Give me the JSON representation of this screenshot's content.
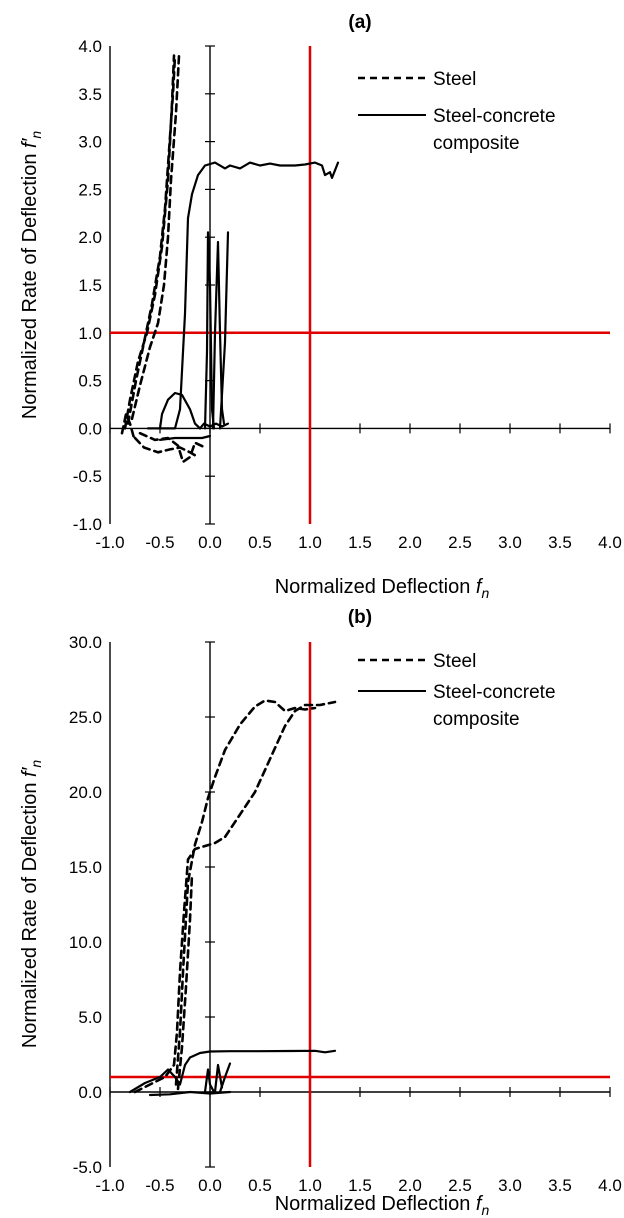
{
  "chart_data": [
    {
      "panel": "(a)",
      "title": "(a)",
      "type": "line",
      "xlabel": "Normalized Deflection",
      "xlabel_italic": "f",
      "xlabel_sub": "n",
      "ylabel": "Normalized Rate of Deflection",
      "ylabel_italic": "f′",
      "ylabel_sub": "n",
      "xlim": [
        -1.0,
        4.0
      ],
      "ylim": [
        -1.0,
        4.0
      ],
      "xticks": [
        "-1.0",
        "-0.5",
        "0.0",
        "0.5",
        "1.0",
        "1.5",
        "2.0",
        "2.5",
        "3.0",
        "3.5",
        "4.0"
      ],
      "yticks": [
        "4.0",
        "3.5",
        "3.0",
        "2.5",
        "2.0",
        "1.5",
        "1.0",
        "0.5",
        "0.0",
        "-0.5",
        "-1.0"
      ],
      "grid": false,
      "legend_position": "top-right",
      "reference_lines": {
        "x": 1.0,
        "y": 1.0,
        "color": "#e00000"
      },
      "series": [
        {
          "name": "Steel",
          "style": "dashed",
          "segments": [
            [
              [
                -0.85,
                0.0
              ],
              [
                -0.8,
                0.3
              ],
              [
                -0.72,
                0.7
              ],
              [
                -0.63,
                1.0
              ],
              [
                -0.55,
                1.4
              ],
              [
                -0.48,
                1.9
              ],
              [
                -0.42,
                2.6
              ],
              [
                -0.38,
                3.4
              ],
              [
                -0.36,
                3.9
              ]
            ],
            [
              [
                -0.82,
                0.05
              ],
              [
                -0.74,
                0.5
              ],
              [
                -0.66,
                0.9
              ],
              [
                -0.58,
                1.3
              ],
              [
                -0.5,
                1.8
              ],
              [
                -0.45,
                2.3
              ],
              [
                -0.41,
                2.9
              ],
              [
                -0.37,
                3.5
              ],
              [
                -0.35,
                3.9
              ]
            ],
            [
              [
                -0.78,
                0.1
              ],
              [
                -0.7,
                0.45
              ],
              [
                -0.6,
                0.85
              ],
              [
                -0.52,
                1.1
              ],
              [
                -0.46,
                1.5
              ],
              [
                -0.42,
                2.0
              ],
              [
                -0.39,
                2.6
              ],
              [
                -0.34,
                3.3
              ],
              [
                -0.31,
                3.9
              ]
            ],
            [
              [
                -0.75,
                -0.1
              ],
              [
                -0.66,
                -0.2
              ],
              [
                -0.52,
                -0.25
              ],
              [
                -0.4,
                -0.22
              ],
              [
                -0.3,
                -0.2
              ],
              [
                -0.2,
                -0.25
              ],
              [
                -0.12,
                -0.3
              ]
            ],
            [
              [
                -0.7,
                -0.05
              ],
              [
                -0.55,
                -0.12
              ],
              [
                -0.42,
                -0.1
              ],
              [
                -0.32,
                -0.18
              ],
              [
                -0.27,
                -0.35
              ],
              [
                -0.2,
                -0.3
              ],
              [
                -0.15,
                -0.15
              ],
              [
                -0.05,
                -0.2
              ]
            ],
            [
              [
                -0.88,
                -0.05
              ],
              [
                -0.84,
                0.15
              ],
              [
                -0.8,
                0.05
              ],
              [
                -0.76,
                -0.1
              ]
            ]
          ]
        },
        {
          "name": "Steel-concrete composite",
          "legend_lines": [
            "Steel-concrete",
            "composite"
          ],
          "style": "solid",
          "segments": [
            [
              [
                -0.62,
                0.0
              ],
              [
                -0.45,
                0.0
              ],
              [
                -0.35,
                0.0
              ],
              [
                -0.3,
                0.2
              ],
              [
                -0.25,
                1.2
              ],
              [
                -0.22,
                2.2
              ],
              [
                -0.18,
                2.45
              ],
              [
                -0.12,
                2.65
              ],
              [
                -0.05,
                2.75
              ],
              [
                0.05,
                2.78
              ],
              [
                0.15,
                2.72
              ],
              [
                0.2,
                2.75
              ],
              [
                0.3,
                2.72
              ],
              [
                0.4,
                2.78
              ],
              [
                0.5,
                2.75
              ],
              [
                0.6,
                2.77
              ],
              [
                0.7,
                2.75
              ],
              [
                0.85,
                2.75
              ],
              [
                0.95,
                2.76
              ],
              [
                1.05,
                2.78
              ],
              [
                1.12,
                2.75
              ],
              [
                1.15,
                2.65
              ],
              [
                1.2,
                2.68
              ],
              [
                1.22,
                2.62
              ],
              [
                1.25,
                2.7
              ],
              [
                1.28,
                2.78
              ]
            ],
            [
              [
                -0.5,
                0.0
              ],
              [
                -0.48,
                0.15
              ],
              [
                -0.42,
                0.3
              ],
              [
                -0.35,
                0.37
              ],
              [
                -0.28,
                0.35
              ],
              [
                -0.2,
                0.2
              ],
              [
                -0.15,
                0.05
              ],
              [
                -0.1,
                0.0
              ]
            ],
            [
              [
                -0.5,
                -0.12
              ],
              [
                -0.35,
                -0.1
              ],
              [
                -0.2,
                -0.1
              ],
              [
                -0.08,
                -0.1
              ],
              [
                0.0,
                -0.08
              ]
            ],
            [
              [
                -0.05,
                0.0
              ],
              [
                -0.03,
                0.8
              ],
              [
                -0.02,
                2.05
              ],
              [
                0.0,
                1.5
              ],
              [
                0.02,
                0.2
              ],
              [
                0.04,
                0.0
              ]
            ],
            [
              [
                0.03,
                0.0
              ],
              [
                0.05,
                1.0
              ],
              [
                0.08,
                1.95
              ],
              [
                0.1,
                1.0
              ],
              [
                0.12,
                0.2
              ],
              [
                0.14,
                0.05
              ]
            ],
            [
              [
                0.1,
                0.0
              ],
              [
                0.15,
                0.9
              ],
              [
                0.18,
                2.05
              ]
            ],
            [
              [
                -0.1,
                0.0
              ],
              [
                -0.06,
                0.05
              ],
              [
                0.0,
                0.02
              ],
              [
                0.06,
                0.05
              ],
              [
                0.12,
                0.02
              ],
              [
                0.18,
                0.05
              ]
            ]
          ]
        }
      ]
    },
    {
      "panel": "(b)",
      "title": "(b)",
      "type": "line",
      "xlabel": "Normalized Deflection",
      "xlabel_italic": "f",
      "xlabel_sub": "n",
      "ylabel": "Normalized Rate of Deflection",
      "ylabel_italic": "f′",
      "ylabel_sub": "n",
      "xlim": [
        -1.0,
        4.0
      ],
      "ylim": [
        -5.0,
        30.0
      ],
      "xticks": [
        "-1.0",
        "-0.5",
        "0.0",
        "0.5",
        "1.0",
        "1.5",
        "2.0",
        "2.5",
        "3.0",
        "3.5",
        "4.0"
      ],
      "yticks": [
        "30.0",
        "25.0",
        "20.0",
        "15.0",
        "10.0",
        "5.0",
        "0.0",
        "-5.0"
      ],
      "grid": false,
      "legend_position": "top-right",
      "reference_lines": {
        "x": 1.0,
        "y": 1.0,
        "color": "#e00000"
      },
      "series": [
        {
          "name": "Steel",
          "style": "dashed",
          "segments": [
            [
              [
                -0.75,
                0.0
              ],
              [
                -0.6,
                0.5
              ],
              [
                -0.45,
                1.0
              ],
              [
                -0.36,
                1.8
              ],
              [
                -0.33,
                4.0
              ],
              [
                -0.3,
                8.0
              ],
              [
                -0.26,
                12.0
              ],
              [
                -0.22,
                15.5
              ],
              [
                -0.15,
                16.2
              ],
              [
                -0.05,
                16.4
              ],
              [
                0.05,
                16.6
              ],
              [
                0.15,
                17.0
              ],
              [
                0.3,
                18.5
              ],
              [
                0.45,
                20.0
              ],
              [
                0.6,
                22.2
              ],
              [
                0.75,
                24.4
              ],
              [
                0.85,
                25.4
              ],
              [
                0.95,
                25.8
              ],
              [
                1.1,
                25.8
              ],
              [
                1.25,
                26.0
              ]
            ],
            [
              [
                -0.34,
                0.5
              ],
              [
                -0.3,
                4.0
              ],
              [
                -0.27,
                8.0
              ],
              [
                -0.22,
                14.0
              ],
              [
                -0.15,
                16.5
              ],
              [
                -0.08,
                18.0
              ],
              [
                -0.02,
                19.6
              ],
              [
                0.05,
                21.0
              ],
              [
                0.15,
                22.8
              ],
              [
                0.3,
                24.5
              ],
              [
                0.45,
                25.7
              ],
              [
                0.55,
                26.1
              ],
              [
                0.65,
                26.0
              ],
              [
                0.75,
                25.4
              ],
              [
                0.85,
                25.6
              ],
              [
                0.95,
                25.5
              ],
              [
                1.05,
                25.6
              ]
            ],
            [
              [
                -0.32,
                0.2
              ],
              [
                -0.28,
                3.0
              ],
              [
                -0.24,
                7.0
              ],
              [
                -0.2,
                11.5
              ],
              [
                -0.18,
                14.5
              ]
            ]
          ]
        },
        {
          "name": "Steel-concrete composite",
          "legend_lines": [
            "Steel-concrete",
            "composite"
          ],
          "style": "solid",
          "segments": [
            [
              [
                -0.8,
                0.0
              ],
              [
                -0.65,
                0.6
              ],
              [
                -0.5,
                1.0
              ],
              [
                -0.42,
                1.5
              ],
              [
                -0.35,
                1.0
              ],
              [
                -0.3,
                0.5
              ],
              [
                -0.25,
                1.8
              ],
              [
                -0.2,
                2.3
              ],
              [
                -0.1,
                2.6
              ],
              [
                0.0,
                2.7
              ],
              [
                0.2,
                2.72
              ],
              [
                0.5,
                2.72
              ],
              [
                0.8,
                2.73
              ],
              [
                1.05,
                2.75
              ],
              [
                1.15,
                2.65
              ],
              [
                1.25,
                2.75
              ]
            ],
            [
              [
                -0.05,
                0.0
              ],
              [
                -0.02,
                1.5
              ],
              [
                0.0,
                0.5
              ],
              [
                0.04,
                0.0
              ]
            ],
            [
              [
                0.05,
                0.0
              ],
              [
                0.08,
                1.8
              ],
              [
                0.12,
                0.3
              ]
            ],
            [
              [
                0.1,
                0.0
              ],
              [
                0.15,
                1.0
              ],
              [
                0.2,
                1.9
              ]
            ],
            [
              [
                -0.6,
                -0.2
              ],
              [
                -0.4,
                -0.15
              ],
              [
                -0.2,
                0.0
              ],
              [
                0.0,
                -0.1
              ],
              [
                0.2,
                0.0
              ]
            ]
          ]
        }
      ]
    }
  ]
}
